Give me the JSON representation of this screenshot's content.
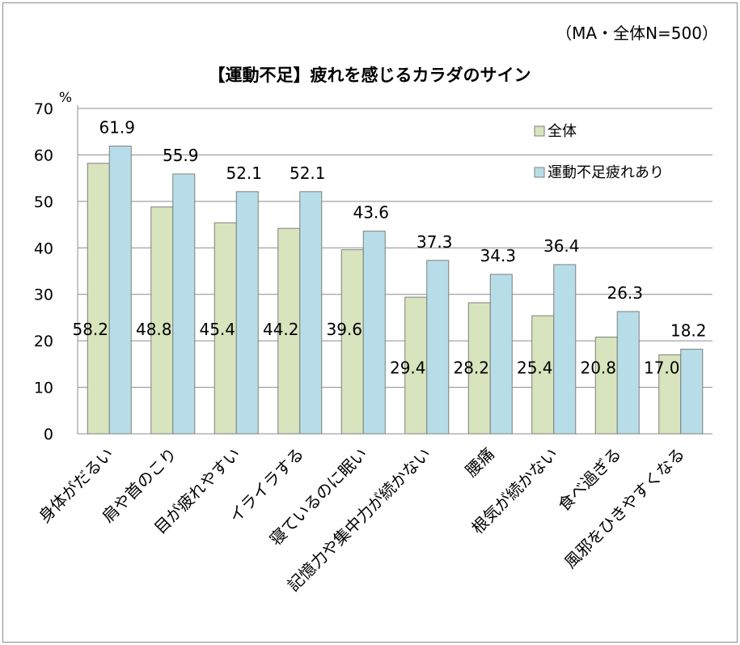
{
  "chart_data": {
    "type": "bar",
    "title": "【運動不足】疲れを感じるカラダのサイン",
    "note": "（MA・全体N=500）",
    "ylabel": "%",
    "ylim": [
      0,
      70
    ],
    "yticks": [
      0,
      10,
      20,
      30,
      40,
      50,
      60,
      70
    ],
    "grid": true,
    "legend_position": "top-right",
    "categories": [
      "身体がだるい",
      "肩や首のこり",
      "目が疲れやすい",
      "イライラする",
      "寝ているのに眠い",
      "記憶力や集中力が続かない",
      "腰痛",
      "根気が続かない",
      "食べ過ぎる",
      "風邪をひきやすくなる"
    ],
    "series": [
      {
        "name": "全体",
        "color": "#d7e4bd",
        "values": [
          58.2,
          48.8,
          45.4,
          44.2,
          39.6,
          29.4,
          28.2,
          25.4,
          20.8,
          17.0
        ],
        "labels": [
          "58.2",
          "48.8",
          "45.4",
          "44.2",
          "39.6",
          "29.4",
          "28.2",
          "25.4",
          "20.8",
          "17.0"
        ]
      },
      {
        "name": "運動不足疲れあり",
        "color": "#b7dee8",
        "values": [
          61.9,
          55.9,
          52.1,
          52.1,
          43.6,
          37.3,
          34.3,
          36.4,
          26.3,
          18.2
        ],
        "labels": [
          "61.9",
          "55.9",
          "52.1",
          "52.1",
          "43.6",
          "37.3",
          "34.3",
          "36.4",
          "26.3",
          "18.2"
        ]
      }
    ]
  }
}
